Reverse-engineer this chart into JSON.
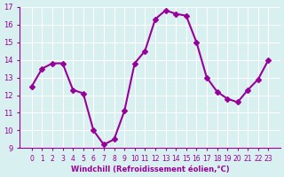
{
  "x": [
    0,
    1,
    2,
    3,
    4,
    5,
    6,
    7,
    8,
    9,
    10,
    11,
    12,
    13,
    14,
    15,
    16,
    17,
    18,
    19,
    20,
    21,
    22,
    23
  ],
  "y": [
    12.5,
    13.5,
    13.8,
    13.8,
    12.3,
    12.1,
    10.0,
    9.2,
    9.5,
    11.1,
    13.8,
    14.5,
    16.3,
    16.8,
    16.6,
    16.5,
    15.0,
    13.0,
    12.2,
    11.8,
    11.6,
    12.3,
    12.9,
    14.0
  ],
  "line_color": "#990099",
  "marker": "D",
  "marker_size": 3,
  "bg_color": "#d8f0f0",
  "grid_color": "#ffffff",
  "xlabel": "Windchill (Refroidissement éolien,°C)",
  "xlabel_color": "#990099",
  "tick_color": "#990099",
  "ylim": [
    9,
    17
  ],
  "yticks": [
    9,
    10,
    11,
    12,
    13,
    14,
    15,
    16,
    17
  ],
  "xticks": [
    0,
    1,
    2,
    3,
    4,
    5,
    6,
    7,
    8,
    9,
    10,
    11,
    12,
    13,
    14,
    15,
    16,
    17,
    18,
    19,
    20,
    21,
    22,
    23
  ],
  "spine_color": "#990099",
  "linewidth": 1.5
}
